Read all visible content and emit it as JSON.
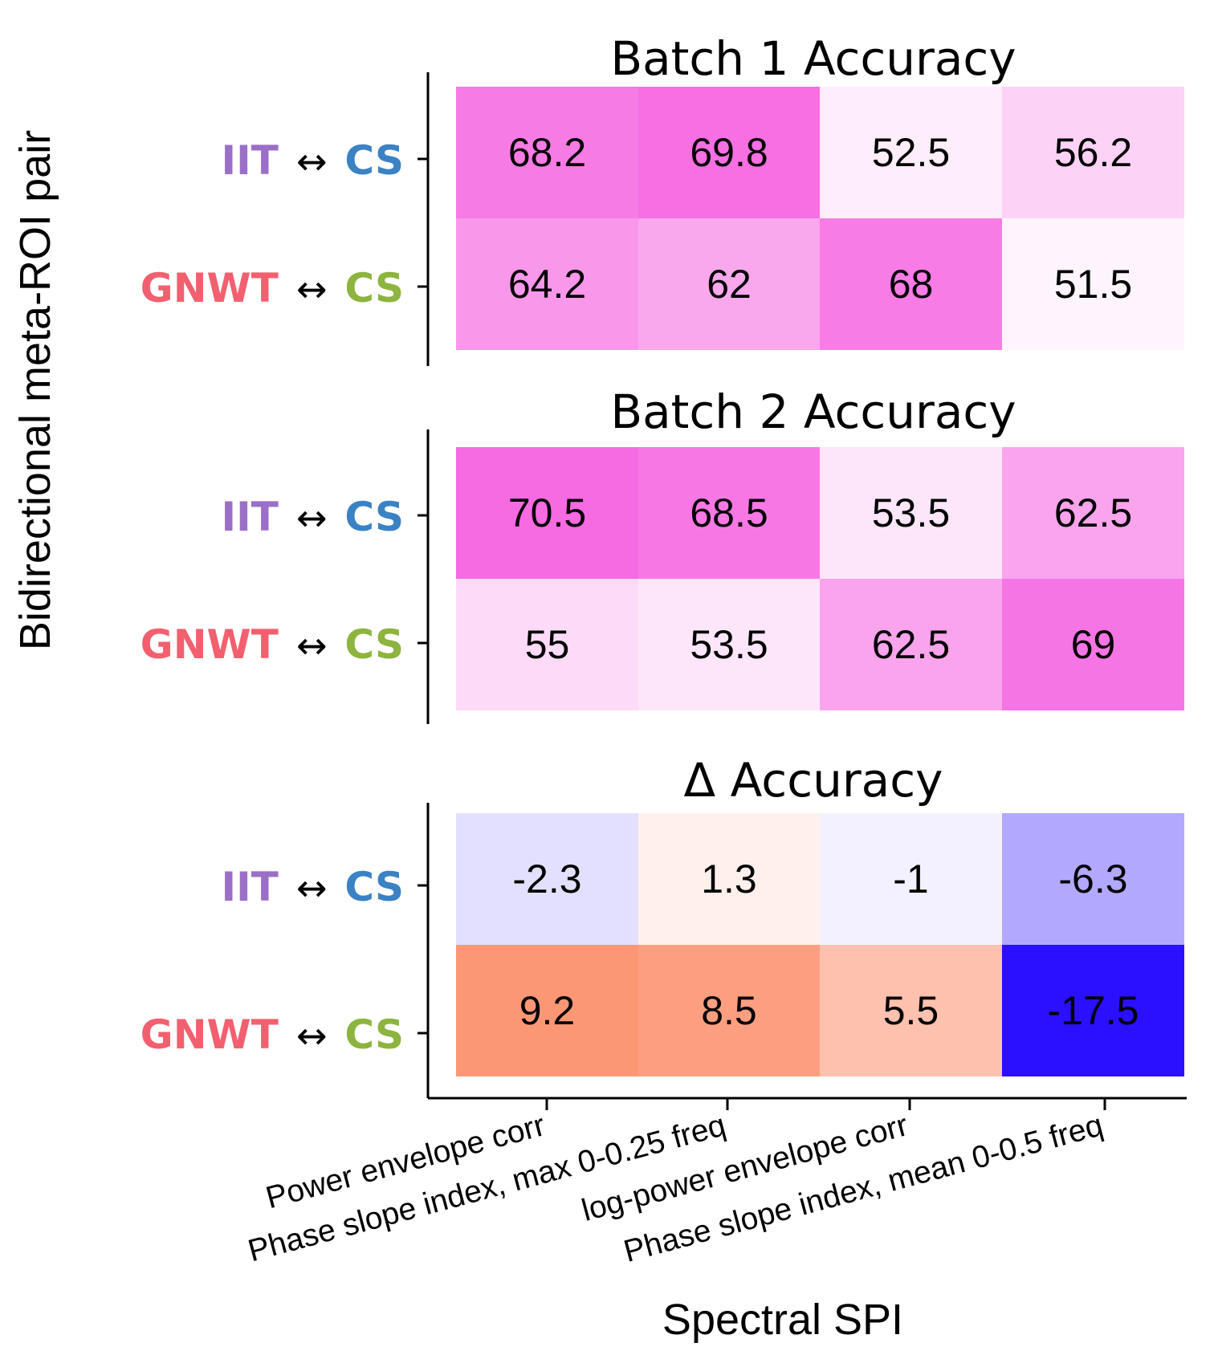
{
  "chart_data": {
    "type": "heatmap",
    "xlabel": "Spectral SPI",
    "ylabel": "Bidirectional meta-ROI pair",
    "categories": [
      "Power envelope corr",
      "Phase slope index, max 0-0.25 freq",
      "log-power envelope corr",
      "Phase slope index, mean 0-0.5 freq"
    ],
    "rows": [
      {
        "left": "IIT",
        "arrow": "↔",
        "right": "CS",
        "left_color": "#9b6fc8",
        "right_color": "#3a82c4"
      },
      {
        "left": "GNWT",
        "arrow": "↔",
        "right": "CS",
        "left_color": "#f2606f",
        "right_color": "#8db43f"
      }
    ],
    "panels": [
      {
        "title": "Batch 1 Accuracy",
        "scale": "sequential",
        "vmin": 50,
        "vmax": 72,
        "values": [
          [
            68.2,
            69.8,
            52.5,
            56.2
          ],
          [
            64.2,
            62,
            68,
            51.5
          ]
        ],
        "labels": [
          [
            "68.2",
            "69.8",
            "52.5",
            "56.2"
          ],
          [
            "64.2",
            "62",
            "68",
            "51.5"
          ]
        ]
      },
      {
        "title": "Batch 2 Accuracy",
        "scale": "sequential",
        "vmin": 50,
        "vmax": 72,
        "values": [
          [
            70.5,
            68.5,
            53.5,
            62.5
          ],
          [
            55,
            53.5,
            62.5,
            69
          ]
        ],
        "labels": [
          [
            "70.5",
            "68.5",
            "53.5",
            "62.5"
          ],
          [
            "55",
            "53.5",
            "62.5",
            "69"
          ]
        ]
      },
      {
        "title": "Δ Accuracy",
        "scale": "diverging",
        "vmin": -17.5,
        "vmax": 17.5,
        "values": [
          [
            -2.3,
            1.3,
            -1,
            -6.3
          ],
          [
            9.2,
            8.5,
            5.5,
            -17.5
          ]
        ],
        "labels": [
          [
            "-2.3",
            "1.3",
            "-1",
            "-6.3"
          ],
          [
            "9.2",
            "8.5",
            "5.5",
            "-17.5"
          ]
        ]
      }
    ],
    "colors": {
      "sequential_low": "#ffffff",
      "sequential_high": "#f55fe0",
      "diverging_neg": "#2a10ff",
      "diverging_pos": "#fc9775",
      "diverging_mid": "#ffffff"
    },
    "grid": false,
    "legend": "none"
  }
}
